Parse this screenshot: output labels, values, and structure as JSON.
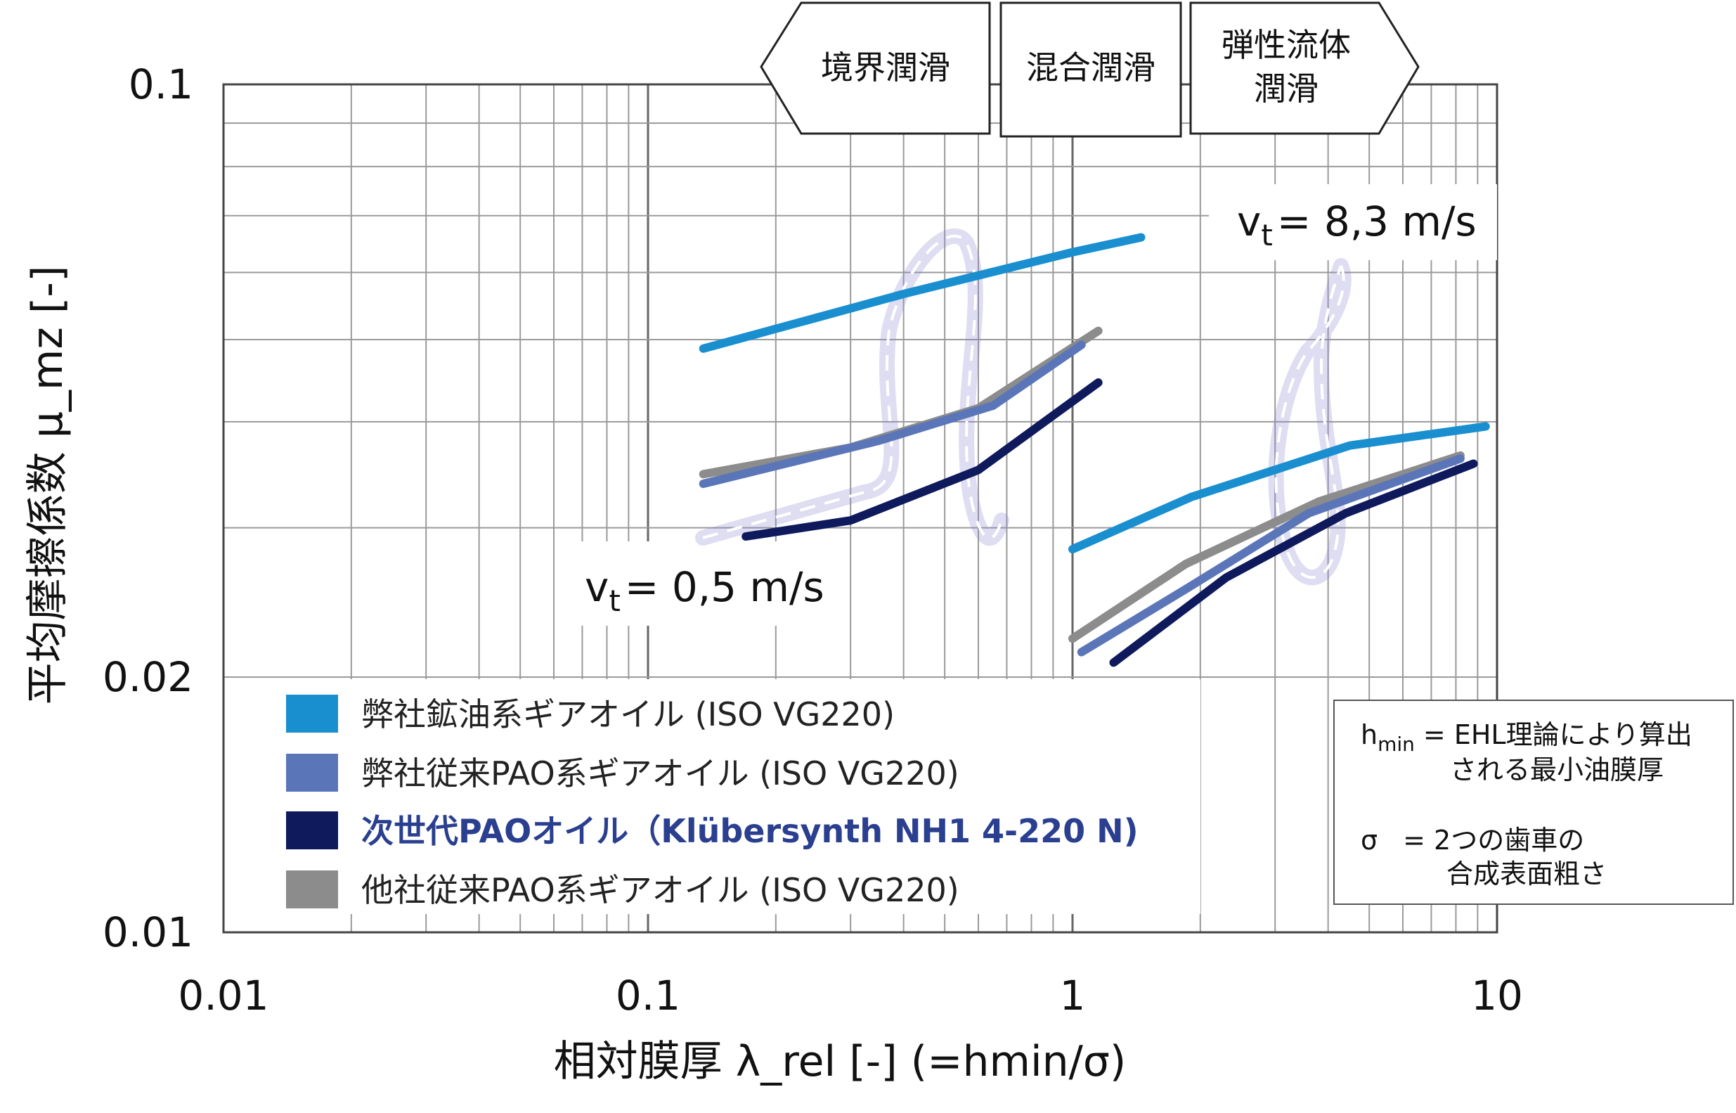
{
  "chart_data": {
    "type": "line",
    "xlabel": "相対膜厚 λ_rel [-] (=hmin/σ)",
    "ylabel": "平均摩擦係数 μ_mz [-]",
    "xscale": "log",
    "yscale": "log",
    "xlim": [
      0.01,
      10
    ],
    "ylim": [
      0.01,
      0.1
    ],
    "grid": true,
    "x_ticks": [
      {
        "value": 0.01,
        "label": "0.01"
      },
      {
        "value": 0.1,
        "label": "0.1"
      },
      {
        "value": 1,
        "label": "1"
      },
      {
        "value": 10,
        "label": "10"
      }
    ],
    "y_ticks": [
      {
        "value": 0.01,
        "label": "0.01"
      },
      {
        "value": 0.02,
        "label": "0.02"
      },
      {
        "value": 0.1,
        "label": "0.1"
      }
    ],
    "regimes": [
      "境界潤滑",
      "混合潤滑",
      "弾性流体潤滑"
    ],
    "series": [
      {
        "name": "弊社鉱油系ギアオイル (ISO VG220)",
        "color": "#1a8fd0",
        "segments": [
          [
            [
              0.135,
              0.0488
            ],
            [
              0.4,
              0.0566
            ],
            [
              1.0,
              0.0634
            ],
            [
              1.45,
              0.066
            ]
          ],
          [
            [
              1.0,
              0.0283
            ],
            [
              1.9,
              0.0326
            ],
            [
              4.5,
              0.0375
            ],
            [
              9.4,
              0.0395
            ]
          ]
        ]
      },
      {
        "name": "弊社従来PAO系ギアオイル (ISO VG220)",
        "color": "#5b76b8",
        "segments": [
          [
            [
              0.135,
              0.0338
            ],
            [
              0.35,
              0.038
            ],
            [
              0.65,
              0.0418
            ],
            [
              1.05,
              0.0493
            ]
          ],
          [
            [
              1.05,
              0.0214
            ],
            [
              1.85,
              0.0254
            ],
            [
              3.6,
              0.0312
            ],
            [
              8.2,
              0.0362
            ]
          ]
        ]
      },
      {
        "name": "次世代PAOオイル（Klübersynth NH1 4-220 N)",
        "color": "#0f1a5c",
        "segments": [
          [
            [
              0.17,
              0.0293
            ],
            [
              0.3,
              0.0306
            ],
            [
              0.6,
              0.0351
            ],
            [
              1.15,
              0.0445
            ]
          ],
          [
            [
              1.25,
              0.0208
            ],
            [
              2.3,
              0.0262
            ],
            [
              4.4,
              0.0312
            ],
            [
              8.8,
              0.0357
            ]
          ]
        ]
      },
      {
        "name": "他社従来PAO系ギアオイル (ISO VG220)",
        "color": "#8c8c8c",
        "segments": [
          [
            [
              0.135,
              0.0347
            ],
            [
              0.3,
              0.0373
            ],
            [
              0.6,
              0.0415
            ],
            [
              1.15,
              0.0512
            ]
          ],
          [
            [
              1.0,
              0.0222
            ],
            [
              1.85,
              0.0272
            ],
            [
              3.8,
              0.0322
            ],
            [
              8.2,
              0.0365
            ]
          ]
        ]
      }
    ],
    "annotations": [
      {
        "text": "v",
        "subscript": "t",
        "value_text": "= 8,3 m/s"
      },
      {
        "text": "v",
        "subscript": "t",
        "value_text": "= 0,5 m/s"
      }
    ],
    "note_box": {
      "line1_h": "h",
      "line1_sub": "min",
      "line1_rest": "= EHL理論により算出",
      "line2": "される最小油膜厚",
      "line3_sym": "σ",
      "line3_rest": "= 2つの歯車の",
      "line4": "合成表面粗さ"
    }
  }
}
